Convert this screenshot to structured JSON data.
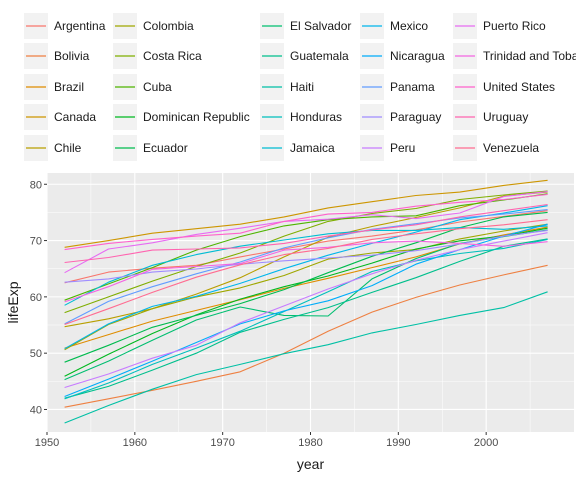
{
  "chart_data": {
    "type": "line",
    "title": "",
    "xlabel": "year",
    "ylabel": "lifeExp",
    "xlim": [
      1950,
      2010
    ],
    "ylim": [
      36,
      82
    ],
    "x_ticks": [
      1950,
      1960,
      1970,
      1980,
      1990,
      2000
    ],
    "y_ticks": [
      40,
      50,
      60,
      70,
      80
    ],
    "grid": true,
    "legend_position": "top",
    "x": [
      1952,
      1957,
      1962,
      1967,
      1972,
      1977,
      1982,
      1987,
      1992,
      1997,
      2002,
      2007
    ],
    "series": [
      {
        "name": "Argentina",
        "color": "#F8766D",
        "values": [
          62.5,
          64.4,
          65.1,
          65.6,
          67.1,
          68.5,
          69.9,
          70.8,
          71.9,
          73.3,
          74.3,
          75.3
        ]
      },
      {
        "name": "Bolivia",
        "color": "#EE8042",
        "values": [
          40.4,
          41.9,
          43.4,
          45.0,
          46.7,
          50.0,
          53.9,
          57.3,
          59.9,
          62.1,
          63.9,
          65.6
        ]
      },
      {
        "name": "Brazil",
        "color": "#DF8D00",
        "values": [
          50.9,
          53.3,
          55.7,
          57.6,
          59.5,
          61.5,
          63.3,
          65.2,
          67.1,
          69.4,
          71.0,
          72.4
        ]
      },
      {
        "name": "Canada",
        "color": "#CD9600",
        "values": [
          68.8,
          70.0,
          71.3,
          72.1,
          72.9,
          74.2,
          75.8,
          76.9,
          78.0,
          78.6,
          79.8,
          80.7
        ]
      },
      {
        "name": "Chile",
        "color": "#B89F00",
        "values": [
          54.7,
          56.1,
          57.9,
          60.5,
          63.4,
          67.1,
          70.6,
          72.5,
          74.1,
          75.8,
          77.9,
          78.6
        ]
      },
      {
        "name": "Colombia",
        "color": "#9FA700",
        "values": [
          50.6,
          55.1,
          57.9,
          60.0,
          61.6,
          63.8,
          66.7,
          67.8,
          68.4,
          70.3,
          71.7,
          72.9
        ]
      },
      {
        "name": "Costa Rica",
        "color": "#7FAE00",
        "values": [
          57.2,
          60.0,
          62.8,
          65.4,
          67.8,
          70.8,
          73.4,
          74.8,
          75.7,
          77.3,
          78.1,
          78.8
        ]
      },
      {
        "name": "Cuba",
        "color": "#4EB400",
        "values": [
          59.4,
          62.3,
          65.2,
          68.3,
          70.7,
          72.6,
          73.7,
          74.2,
          74.4,
          76.2,
          77.2,
          78.3
        ]
      },
      {
        "name": "Dominican Republic",
        "color": "#00B81F",
        "values": [
          45.9,
          49.8,
          53.5,
          56.8,
          59.6,
          61.8,
          63.7,
          66.0,
          68.5,
          69.96,
          70.8,
          72.2
        ]
      },
      {
        "name": "Ecuador",
        "color": "#00BB4E",
        "values": [
          48.4,
          51.4,
          54.6,
          56.7,
          58.8,
          61.3,
          64.3,
          67.2,
          69.6,
          72.3,
          74.2,
          75.0
        ]
      },
      {
        "name": "El Salvador",
        "color": "#00BE70",
        "values": [
          45.3,
          48.6,
          52.3,
          55.9,
          58.2,
          56.7,
          56.6,
          63.2,
          66.8,
          69.5,
          70.7,
          71.9
        ]
      },
      {
        "name": "Guatemala",
        "color": "#00BF8C",
        "values": [
          42.0,
          44.1,
          47.0,
          50.0,
          53.7,
          56.0,
          58.1,
          60.8,
          63.4,
          66.3,
          68.98,
          70.3
        ]
      },
      {
        "name": "Haiti",
        "color": "#00C0A5",
        "values": [
          37.6,
          40.7,
          43.6,
          46.2,
          48.0,
          49.9,
          51.5,
          53.6,
          55.1,
          56.7,
          58.1,
          60.9
        ]
      },
      {
        "name": "Honduras",
        "color": "#00BFBC",
        "values": [
          41.9,
          44.7,
          48.0,
          50.9,
          53.9,
          57.4,
          60.9,
          64.5,
          66.4,
          67.7,
          68.6,
          70.2
        ]
      },
      {
        "name": "Jamaica",
        "color": "#00BCD3",
        "values": [
          58.5,
          62.6,
          65.6,
          67.5,
          69.0,
          70.1,
          71.2,
          71.8,
          71.8,
          72.3,
          72.0,
          72.6
        ]
      },
      {
        "name": "Mexico",
        "color": "#00B6EB",
        "values": [
          50.8,
          55.2,
          58.3,
          60.1,
          62.4,
          65.0,
          67.4,
          69.5,
          71.5,
          73.7,
          74.9,
          76.2
        ]
      },
      {
        "name": "Nicaragua",
        "color": "#00ADFA",
        "values": [
          42.3,
          45.4,
          48.6,
          51.9,
          55.2,
          57.5,
          59.3,
          62.0,
          65.8,
          68.4,
          70.8,
          72.9
        ]
      },
      {
        "name": "Panama",
        "color": "#619CFF",
        "values": [
          55.2,
          59.2,
          61.8,
          64.1,
          66.2,
          68.7,
          70.5,
          72.0,
          73.0,
          74.0,
          74.7,
          75.5
        ]
      },
      {
        "name": "Paraguay",
        "color": "#9F8CFF",
        "values": [
          62.6,
          63.2,
          64.4,
          64.95,
          65.8,
          66.4,
          66.9,
          67.4,
          68.2,
          69.4,
          70.8,
          71.8
        ]
      },
      {
        "name": "Peru",
        "color": "#C77CFF",
        "values": [
          43.9,
          46.3,
          49.1,
          51.4,
          55.4,
          58.4,
          61.4,
          64.1,
          66.5,
          68.4,
          69.9,
          71.4
        ]
      },
      {
        "name": "Puerto Rico",
        "color": "#E76BF3",
        "values": [
          64.3,
          68.5,
          69.6,
          71.1,
          72.2,
          73.4,
          73.8,
          74.6,
          73.9,
          74.9,
          77.8,
          78.7
        ]
      },
      {
        "name": "Trinidad and Tobago",
        "color": "#F465E2",
        "values": [
          59.1,
          61.8,
          64.9,
          65.4,
          65.9,
          68.3,
          68.8,
          69.6,
          69.9,
          69.5,
          68.98,
          69.8
        ]
      },
      {
        "name": "United States",
        "color": "#FF61CC",
        "values": [
          68.4,
          69.5,
          70.2,
          70.8,
          71.3,
          73.4,
          74.7,
          75.0,
          76.1,
          76.8,
          77.3,
          78.2
        ]
      },
      {
        "name": "Uruguay",
        "color": "#FF64B0",
        "values": [
          66.1,
          67.0,
          68.3,
          68.5,
          68.7,
          69.5,
          70.8,
          71.9,
          72.8,
          74.2,
          75.3,
          76.4
        ]
      },
      {
        "name": "Venezuela",
        "color": "#FF6C91",
        "values": [
          55.1,
          57.9,
          60.8,
          63.5,
          65.7,
          67.5,
          68.6,
          70.2,
          71.2,
          72.1,
          72.8,
          73.7
        ]
      }
    ]
  }
}
